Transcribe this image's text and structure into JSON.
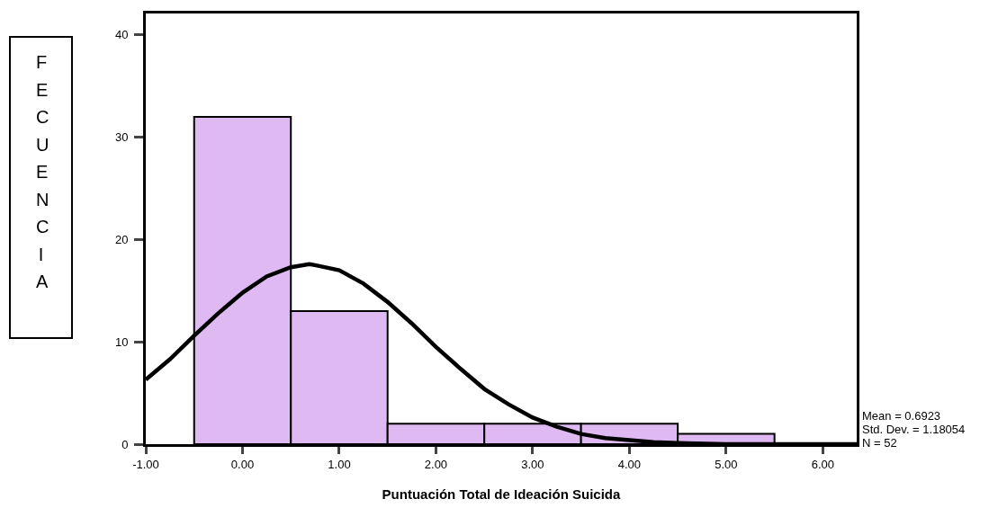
{
  "chart_data": {
    "type": "histogram",
    "xlabel": "Puntuación Total de Ideación Suicida",
    "ylabel": "FECUENCIA",
    "bins": [
      -0.5,
      0.5,
      1.5,
      2.5,
      3.5,
      4.5,
      5.5
    ],
    "values": [
      32,
      13,
      2,
      2,
      2,
      1
    ],
    "color": "#dfb9f2",
    "series": [
      {
        "type": "line",
        "color": "#000000",
        "x": [
          -1,
          -0.75,
          -0.5,
          -0.25,
          0,
          0.25,
          0.5,
          0.69,
          0.75,
          1,
          1.25,
          1.5,
          1.75,
          2,
          2.25,
          2.5,
          2.75,
          3,
          3.25,
          3.5,
          3.75,
          4,
          4.25,
          4.5,
          5,
          5.5,
          6,
          6.35
        ],
        "values": [
          6.3,
          8.3,
          10.6,
          12.8,
          14.8,
          16.4,
          17.3,
          17.6,
          17.5,
          17.0,
          15.7,
          13.9,
          11.8,
          9.5,
          7.4,
          5.4,
          3.9,
          2.6,
          1.7,
          1.0,
          0.6,
          0.4,
          0.2,
          0.1,
          0,
          0,
          0,
          0
        ]
      }
    ],
    "xlim": [
      -1,
      6.35
    ],
    "xticks": [
      {
        "value": -1,
        "label": "-1.00"
      },
      {
        "value": 0,
        "label": "0.00"
      },
      {
        "value": 1,
        "label": "1.00"
      },
      {
        "value": 2,
        "label": "2.00"
      },
      {
        "value": 3,
        "label": "3.00"
      },
      {
        "value": 4,
        "label": "4.00"
      },
      {
        "value": 5,
        "label": "5.00"
      },
      {
        "value": 6,
        "label": "6.00"
      }
    ],
    "ylim": [
      0,
      42.1
    ],
    "yticks": [
      0,
      10,
      20,
      30,
      40
    ],
    "marker": "none",
    "line_style": "solid",
    "annotations": [
      "Mean = 0.6923",
      "Std. Dev. = 1.18054",
      "N = 52"
    ]
  }
}
